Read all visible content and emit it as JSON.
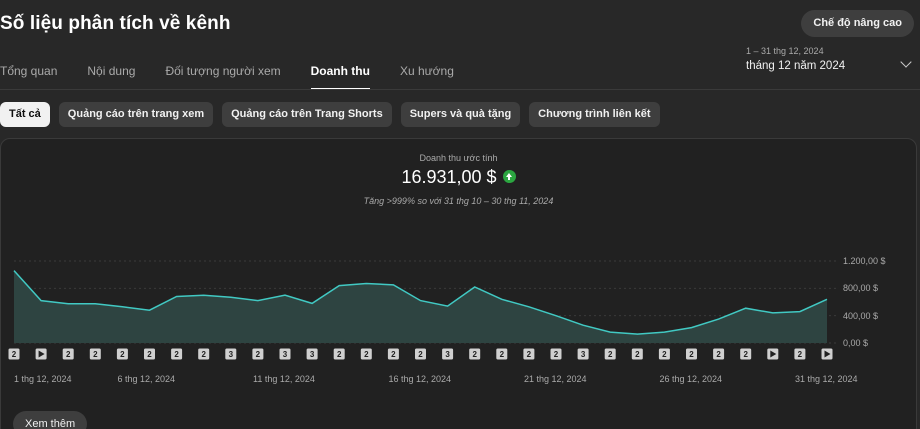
{
  "header": {
    "title": "Số liệu phân tích về kênh",
    "advanced_mode_label": "Chế độ nâng cao"
  },
  "tabs": [
    {
      "label": "Tổng quan",
      "active": false
    },
    {
      "label": "Nội dung",
      "active": false
    },
    {
      "label": "Đối tượng người xem",
      "active": false
    },
    {
      "label": "Doanh thu",
      "active": true
    },
    {
      "label": "Xu hướng",
      "active": false
    }
  ],
  "date_picker": {
    "range": "1 – 31 thg 12, 2024",
    "period": "tháng 12 năm 2024",
    "icon": "chevron-down-icon"
  },
  "filter_chips": [
    {
      "label": "Tất cả",
      "active": true
    },
    {
      "label": "Quảng cáo trên trang xem",
      "active": false
    },
    {
      "label": "Quảng cáo trên Trang Shorts",
      "active": false
    },
    {
      "label": "Supers và quà tặng",
      "active": false
    },
    {
      "label": "Chương trình liên kết",
      "active": false
    }
  ],
  "metric": {
    "label": "Doanh thu ước tính",
    "value": "16.931,00 $",
    "trend_icon": "arrow-up-circle-icon",
    "comparison": "Tăng >999% so với 31 thg 10 – 30 thg 11, 2024"
  },
  "chart_data": {
    "type": "area",
    "x": [
      "1",
      "2",
      "3",
      "4",
      "5",
      "6",
      "7",
      "8",
      "9",
      "10",
      "11",
      "12",
      "13",
      "14",
      "15",
      "16",
      "17",
      "18",
      "19",
      "20",
      "21",
      "22",
      "23",
      "24",
      "25",
      "26",
      "27",
      "28",
      "29",
      "30",
      "31"
    ],
    "values": [
      1060,
      620,
      575,
      575,
      530,
      480,
      680,
      700,
      670,
      620,
      700,
      580,
      840,
      870,
      850,
      620,
      540,
      820,
      640,
      530,
      400,
      260,
      160,
      130,
      160,
      225,
      350,
      510,
      440,
      460,
      640
    ],
    "ylim": [
      0,
      1200
    ],
    "yticks": [
      "1.200,00 $",
      "800,00 $",
      "400,00 $",
      "0,00 $"
    ],
    "ytick_values": [
      1200,
      800,
      400,
      0
    ],
    "xtick_labels": [
      "1 thg 12, 2024",
      "6 thg 12, 2024",
      "11 thg 12, 2024",
      "16 thg 12, 2024",
      "21 thg 12, 2024",
      "26 thg 12, 2024",
      "31 thg 12, 2024"
    ],
    "xtick_days": [
      1,
      6,
      11,
      16,
      21,
      26,
      31
    ],
    "markers": [
      "2",
      "play",
      "2",
      "2",
      "2",
      "2",
      "2",
      "2",
      "3",
      "2",
      "3",
      "3",
      "2",
      "2",
      "2",
      "2",
      "3",
      "2",
      "2",
      "2",
      "2",
      "3",
      "2",
      "2",
      "2",
      "2",
      "2",
      "2",
      "play",
      "2",
      "play"
    ],
    "line_color": "#41c9c3",
    "fill_color": "#2e4441"
  },
  "footer": {
    "more_label": "Xem thêm"
  }
}
